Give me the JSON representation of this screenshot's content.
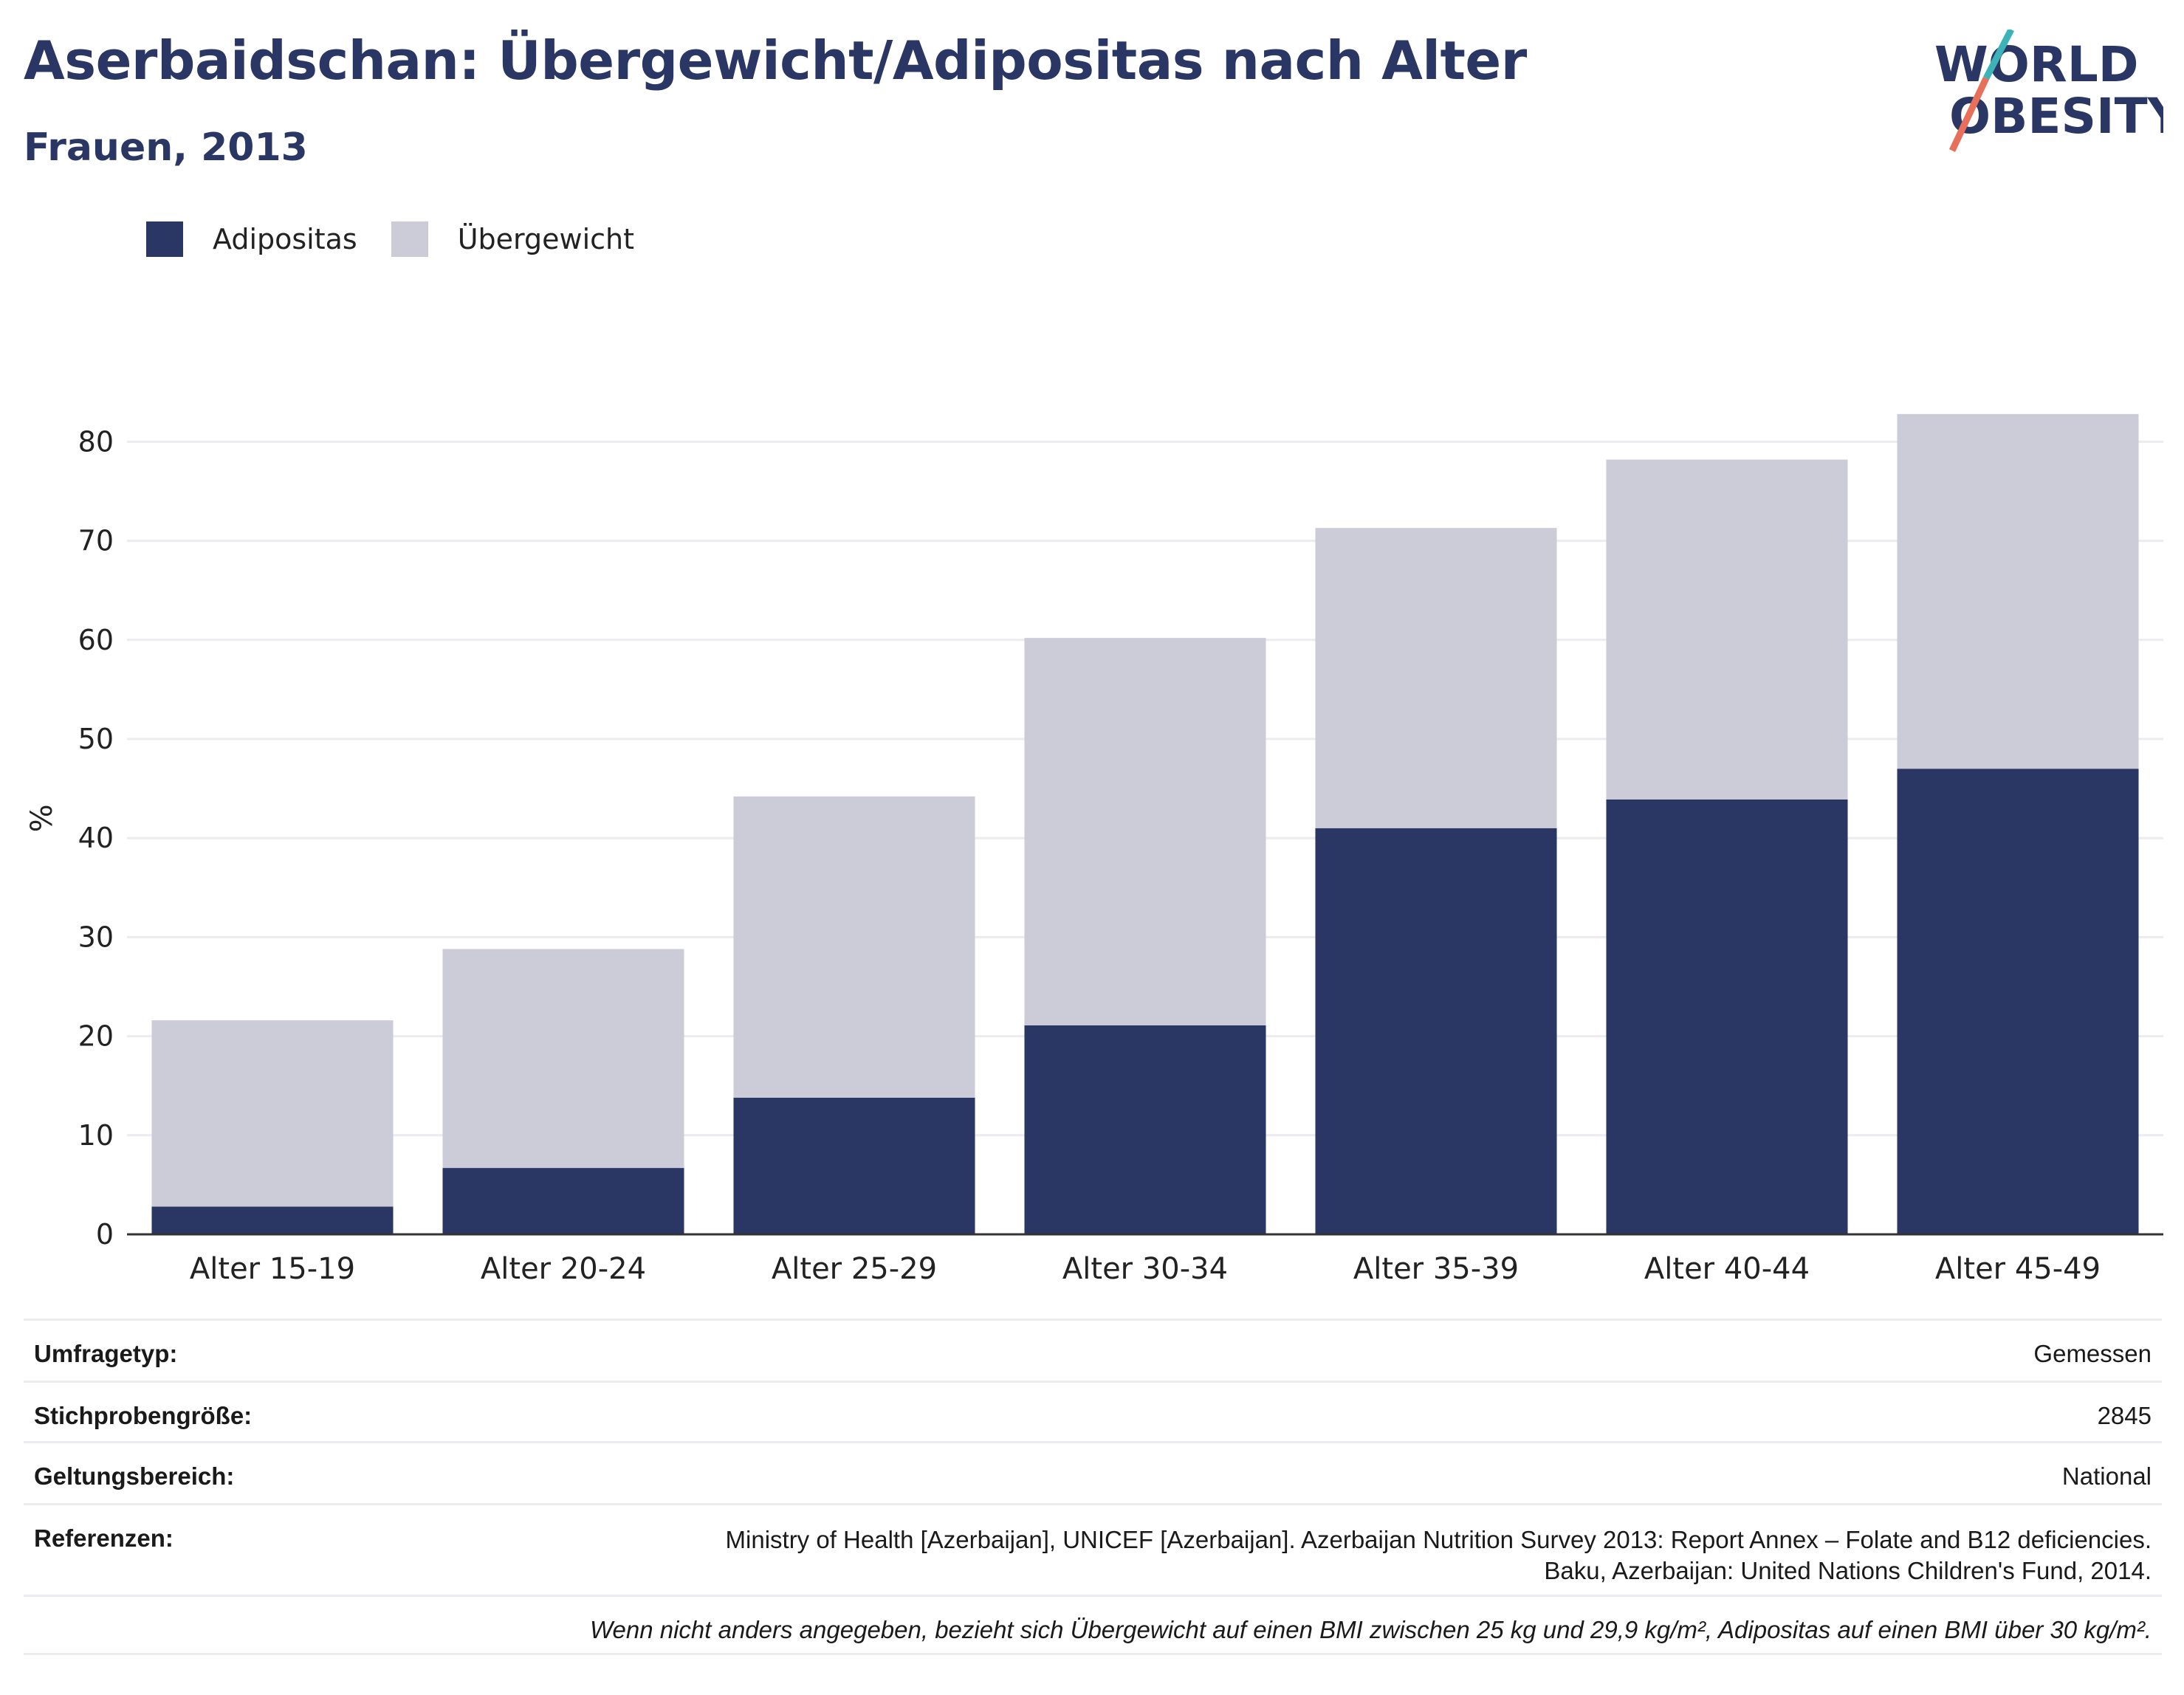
{
  "header": {
    "title": "Aserbaidschan: Übergewicht/Adipositas nach Alter",
    "subtitle": "Frauen, 2013"
  },
  "logo": {
    "line1": "WORLD",
    "line2": "OBESITY",
    "colors": {
      "text": "#2a3663",
      "slash_top": "#3bb3b8",
      "slash_bottom": "#e8705a"
    }
  },
  "legend": {
    "items": [
      {
        "label": "Adipositas",
        "color": "#2a3663"
      },
      {
        "label": "Übergewicht",
        "color": "#cbccd7"
      }
    ]
  },
  "chart_data": {
    "type": "bar",
    "stacked": true,
    "categories": [
      "Alter 15-19",
      "Alter 20-24",
      "Alter 25-29",
      "Alter 30-34",
      "Alter 35-39",
      "Alter 40-44",
      "Alter 45-49"
    ],
    "series": [
      {
        "name": "Adipositas",
        "color": "#2a3663",
        "values": [
          2.8,
          6.7,
          13.8,
          21.1,
          41.0,
          43.9,
          47.0
        ]
      },
      {
        "name": "Übergewicht",
        "color": "#cbccd7",
        "values": [
          18.8,
          22.1,
          30.4,
          39.1,
          30.3,
          34.3,
          35.8
        ]
      }
    ],
    "ylabel": "%",
    "ylim": [
      0,
      85
    ],
    "yticks": [
      0,
      10,
      20,
      30,
      40,
      50,
      60,
      70,
      80
    ],
    "grid": true,
    "legend": "top-left"
  },
  "info": {
    "rows": [
      {
        "key": "Umfragetyp:",
        "value": "Gemessen"
      },
      {
        "key": "Stichprobengröße:",
        "value": "2845"
      },
      {
        "key": "Geltungsbereich:",
        "value": "National"
      },
      {
        "key": "Referenzen:",
        "value_line1": "Ministry of Health [Azerbaijan], UNICEF [Azerbaijan]. Azerbaijan Nutrition Survey 2013: Report Annex – Folate and B12 deficiencies.",
        "value_line2": "Baku, Azerbaijan: United Nations Children's Fund, 2014."
      }
    ],
    "note": "Wenn nicht anders angegeben, bezieht sich Übergewicht auf einen BMI zwischen 25 kg und 29,9 kg/m², Adipositas auf einen BMI über 30 kg/m²."
  }
}
